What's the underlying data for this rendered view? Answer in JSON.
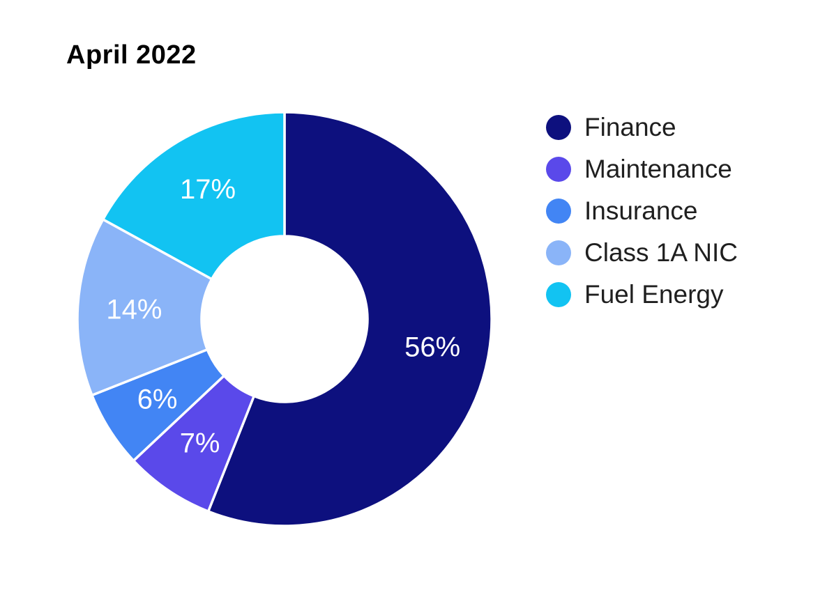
{
  "title": "April 2022",
  "chart_data": {
    "type": "pie",
    "subtype": "donut",
    "title": "April 2022",
    "categories": [
      "Finance",
      "Maintenance",
      "Insurance",
      "Class 1A NIC",
      "Fuel Energy"
    ],
    "values": [
      56,
      7,
      6,
      14,
      17
    ],
    "labels": [
      "56%",
      "7%",
      "6%",
      "14%",
      "17%"
    ],
    "unit": "%",
    "colors": [
      "#0d107e",
      "#5a49ea",
      "#4285f4",
      "#8ab4f8",
      "#12c3f2"
    ],
    "start_angle_deg": 0,
    "direction": "clockwise",
    "inner_radius_ratio": 0.4,
    "label_color": "#ffffff",
    "slice_border_color": "#ffffff",
    "legend_position": "right"
  },
  "legend": {
    "items": [
      {
        "label": "Finance",
        "color": "#0d107e"
      },
      {
        "label": "Maintenance",
        "color": "#5a49ea"
      },
      {
        "label": "Insurance",
        "color": "#4285f4"
      },
      {
        "label": "Class 1A NIC",
        "color": "#8ab4f8"
      },
      {
        "label": "Fuel Energy",
        "color": "#12c3f2"
      }
    ]
  }
}
